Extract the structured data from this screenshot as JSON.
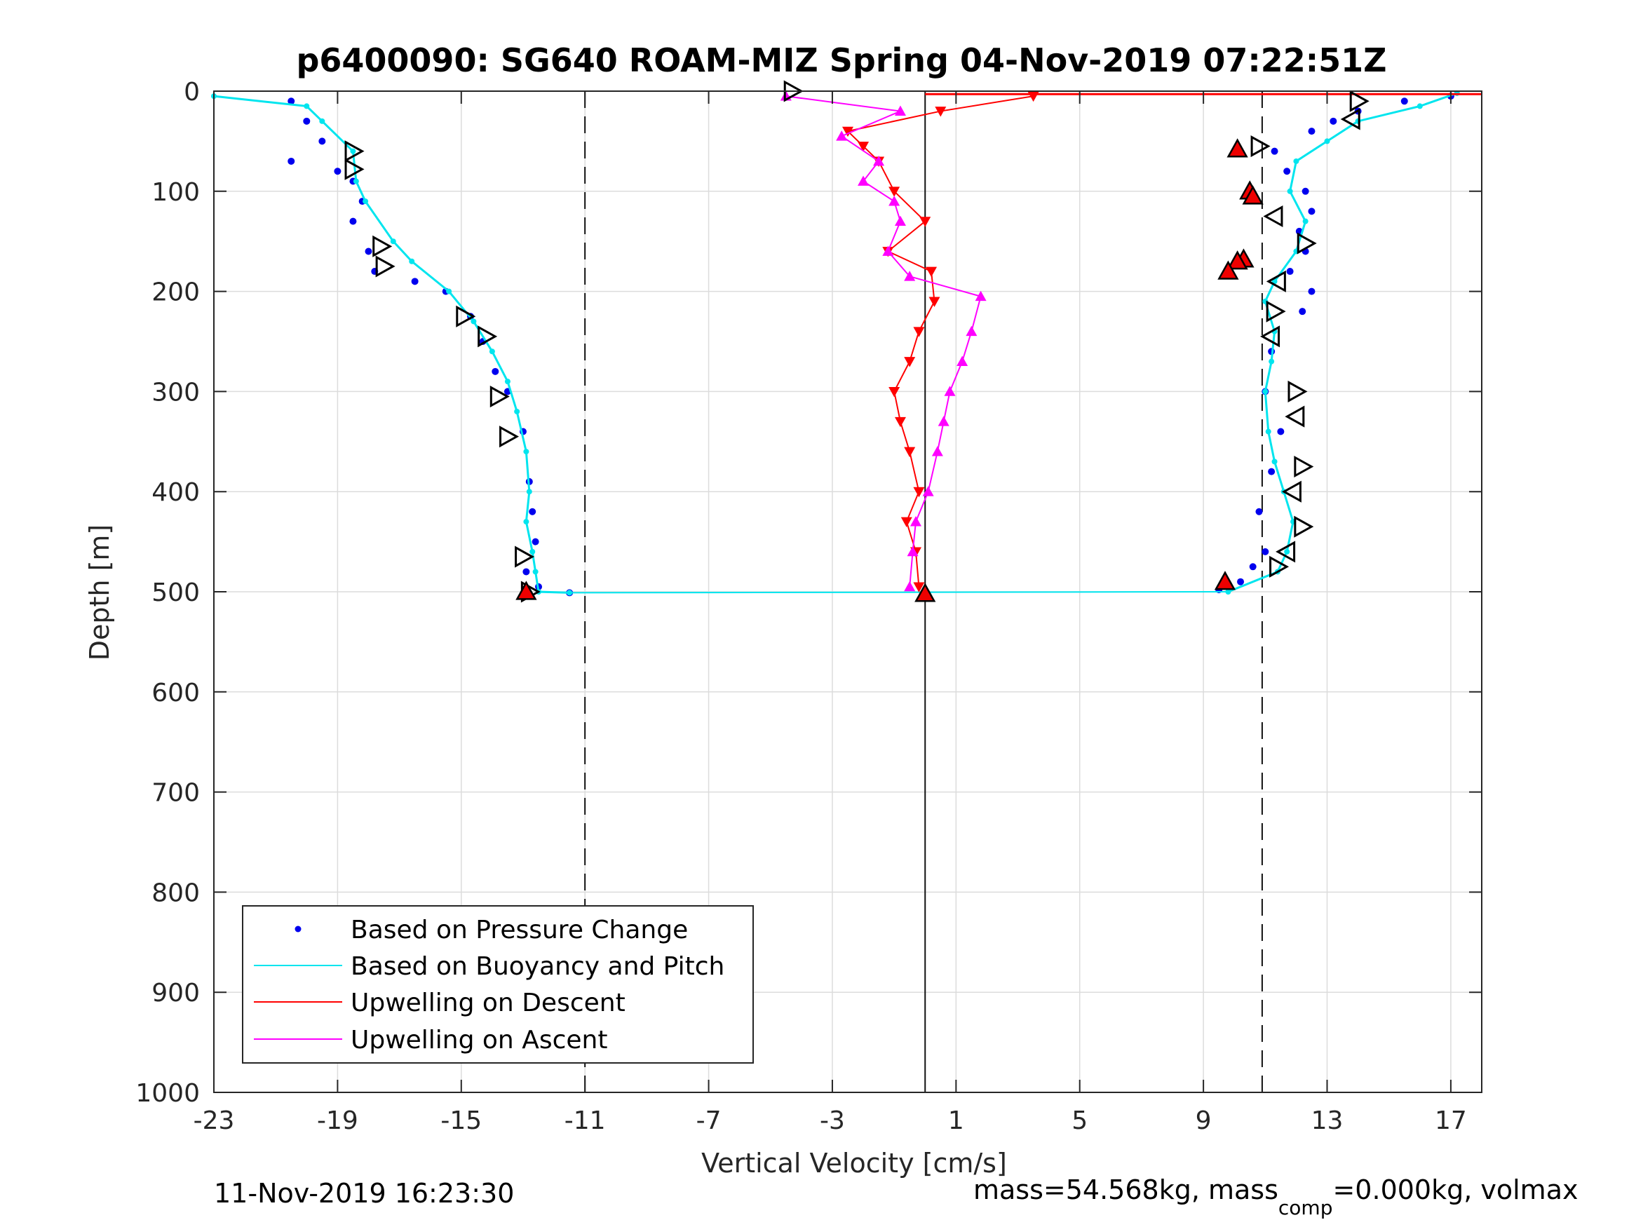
{
  "chart_data": {
    "type": "scatter",
    "title": "p6400090: SG640 ROAM-MIZ Spring 04-Nov-2019 07:22:51Z",
    "xlabel": "Vertical Velocity [cm/s]",
    "ylabel": "Depth [m]",
    "xlim": [
      -23,
      18
    ],
    "ylim": [
      0,
      1000
    ],
    "y_reversed": true,
    "grid": true,
    "x_ticks": [
      "-23",
      "-19",
      "-15",
      "-11",
      "-7",
      "-3",
      "1",
      "5",
      "9",
      "13",
      "17"
    ],
    "y_ticks": [
      "0",
      "100",
      "200",
      "300",
      "400",
      "500",
      "600",
      "700",
      "800",
      "900",
      "1000"
    ],
    "legend_placement": "bottom-left",
    "reference_lines": {
      "dashed_x": [
        -11,
        10.9
      ],
      "solid_x": [
        0
      ]
    },
    "series": [
      {
        "name": "Based on Pressure Change",
        "style": "dots",
        "color": "#0000ee",
        "descent": {
          "x": [
            -20.5,
            -20,
            -19.5,
            -20.5,
            -19,
            -18.5,
            -18.2,
            -18.5,
            -18,
            -17.8,
            -16.5,
            -15.5,
            -14.7,
            -14.3,
            -13.9,
            -13.5,
            -13,
            -12.8,
            -12.7,
            -12.6,
            -12.9,
            -12.5,
            -11.5
          ],
          "y": [
            10,
            30,
            50,
            70,
            80,
            90,
            110,
            130,
            160,
            180,
            190,
            200,
            225,
            250,
            280,
            300,
            340,
            390,
            420,
            450,
            480,
            495,
            501
          ]
        },
        "ascent": {
          "x": [
            9.5,
            10.2,
            10.6,
            11.0,
            10.8,
            11.2,
            11.5,
            11.0,
            11.2,
            12.2,
            12.5,
            11.8,
            12.3,
            12.1,
            12.5,
            12.3,
            11.7,
            11.3,
            12.5,
            13.2,
            14.0,
            15.5,
            17.0
          ],
          "y": [
            498,
            490,
            475,
            460,
            420,
            380,
            340,
            300,
            260,
            220,
            200,
            180,
            160,
            140,
            120,
            100,
            80,
            60,
            40,
            30,
            20,
            10,
            5
          ]
        }
      },
      {
        "name": "Based on Buoyancy and Pitch",
        "style": "line",
        "color": "#00e5ee",
        "descent": {
          "x": [
            -23,
            -20,
            -19.5,
            -18.5,
            -18.4,
            -18.1,
            -17.2,
            -16.6,
            -15.4,
            -14.6,
            -14.0,
            -13.5,
            -13.2,
            -12.9,
            -12.8,
            -12.9,
            -12.7,
            -12.6,
            -12.5,
            -11.5
          ],
          "y": [
            5,
            15,
            30,
            60,
            90,
            110,
            150,
            170,
            200,
            230,
            260,
            290,
            320,
            360,
            400,
            430,
            460,
            480,
            500,
            501
          ]
        },
        "ascent": {
          "x": [
            9.8,
            11.4,
            11.7,
            11.9,
            11.6,
            11.3,
            11.1,
            11.0,
            11.2,
            11.3,
            11.0,
            11.3,
            12.0,
            12.3,
            11.8,
            12.0,
            13.0,
            14.0,
            16.0,
            17.2
          ],
          "y": [
            500,
            480,
            460,
            430,
            400,
            370,
            340,
            300,
            270,
            240,
            210,
            190,
            160,
            130,
            100,
            70,
            50,
            30,
            15,
            2
          ]
        }
      },
      {
        "name": "Upwelling on Descent",
        "style": "triangle-down",
        "color": "#ff0000",
        "x": [
          3.5,
          0.5,
          -2.5,
          -2.0,
          -1.5,
          -1.0,
          0.0,
          -1.2,
          0.2,
          0.3,
          -0.2,
          -0.5,
          -1.0,
          -0.8,
          -0.5,
          -0.2,
          -0.6,
          -0.3,
          -0.2
        ],
        "y": [
          5,
          20,
          40,
          55,
          70,
          100,
          130,
          160,
          180,
          210,
          240,
          270,
          300,
          330,
          360,
          400,
          430,
          460,
          495
        ]
      },
      {
        "name": "Upwelling on Ascent",
        "style": "triangle-up",
        "color": "#ff00ff",
        "x": [
          -4.5,
          -0.8,
          -2.7,
          -1.5,
          -2.0,
          -1.0,
          -0.8,
          -1.2,
          -0.5,
          1.8,
          1.5,
          1.2,
          0.8,
          0.6,
          0.4,
          0.1,
          -0.3,
          -0.4,
          -0.5
        ],
        "y": [
          5,
          20,
          45,
          70,
          90,
          110,
          130,
          160,
          185,
          205,
          240,
          270,
          300,
          330,
          360,
          400,
          430,
          460,
          495
        ]
      }
    ],
    "marker_overlays": {
      "open_triangles_descent": {
        "x": [
          -4.3,
          -18.5,
          -18.5,
          -17.6,
          -17.5,
          -14.9,
          -14.2,
          -13.8,
          -13.5,
          -13.0,
          -12.8
        ],
        "y": [
          0,
          60,
          78,
          155,
          175,
          225,
          245,
          305,
          345,
          465,
          500
        ]
      },
      "open_triangles_ascent": {
        "x": [
          14.0,
          13.8,
          10.8,
          11.3,
          12.3,
          11.4,
          11.3,
          11.2,
          12.0,
          12.0,
          12.2,
          11.9,
          12.2,
          11.7,
          11.4
        ],
        "y": [
          10,
          28,
          55,
          125,
          152,
          190,
          220,
          245,
          300,
          325,
          375,
          400,
          435,
          460,
          475
        ]
      },
      "filled_red_triangles": {
        "x": [
          -12.9,
          0.0,
          9.7,
          10.1,
          10.5,
          10.6,
          10.3,
          10.1,
          9.8
        ],
        "y": [
          500,
          502,
          490,
          58,
          100,
          105,
          168,
          170,
          180
        ]
      }
    }
  },
  "footer": {
    "timestamp": "11-Nov-2019 16:23:30",
    "mass_text_a": "mass=54.568kg, mass",
    "mass_sub": "comp",
    "mass_text_b": "=0.000kg, volmax"
  }
}
